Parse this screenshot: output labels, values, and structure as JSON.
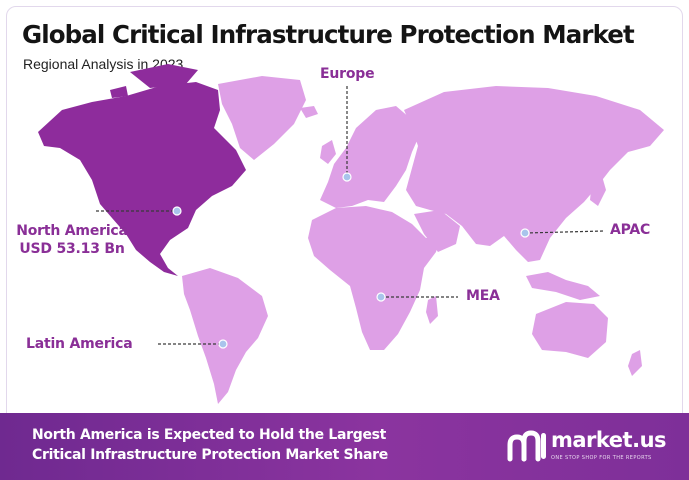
{
  "header": {
    "title": "Global Critical Infrastructure Protection Market",
    "subtitle": "Regional Analysis in 2023"
  },
  "map": {
    "highlight_color": "#8e2c9c",
    "land_color": "#dea0e6",
    "marker_color": "#a9c4ec",
    "regions": {
      "north_america": {
        "name": "North America",
        "value": "USD 53.13 Bn",
        "highlighted": true
      },
      "europe": {
        "name": "Europe"
      },
      "apac": {
        "name": "APAC"
      },
      "mea": {
        "name": "MEA"
      },
      "latin_america": {
        "name": "Latin America"
      }
    }
  },
  "banner": {
    "line1": "North America is Expected to Hold the Largest",
    "line2": "Critical Infrastructure Protection Market Share",
    "brand_name": "market.us",
    "brand_tagline": "ONE STOP SHOP FOR THE REPORTS",
    "background_color": "#7a2d96"
  }
}
